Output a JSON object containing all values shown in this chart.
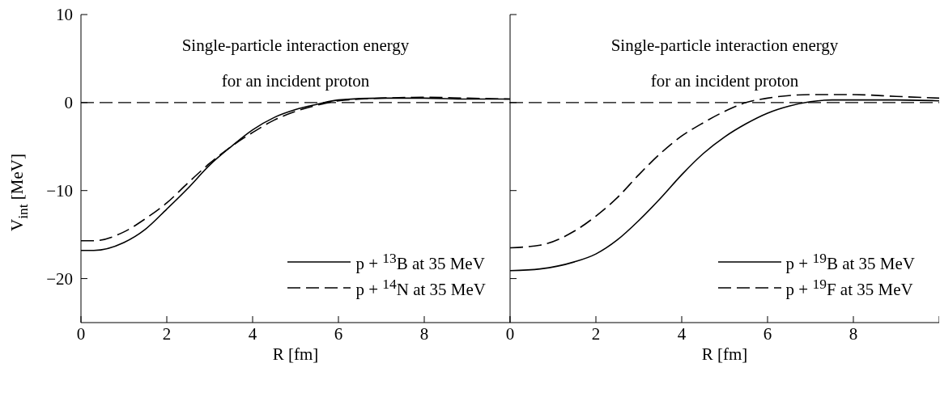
{
  "chart_data": [
    {
      "type": "line",
      "title": "Single-particle interaction energy\nfor an incident proton",
      "xlabel": "R [fm]",
      "ylabel": "V$_{int}$ [MeV]",
      "xlim": [
        0,
        10
      ],
      "xticks": [
        0,
        2,
        4,
        6,
        8,
        {
          "value": 10,
          "label": null
        }
      ],
      "ylim": [
        -25,
        10
      ],
      "yticks": [
        -20,
        -10,
        0,
        10
      ],
      "legend": "bottom right",
      "marker": "none",
      "grid": false,
      "ref_lines": [
        {
          "axis": "y",
          "value": 0,
          "color": "#000000",
          "line_style": "dashed"
        }
      ],
      "series": [
        {
          "name": "p + $^{13}$B at 35 MeV",
          "color": "#000000",
          "line_style": "solid",
          "x": [
            0,
            0.3,
            1,
            1.5,
            2,
            2.5,
            3,
            3.5,
            4,
            4.5,
            5,
            5.5,
            6,
            7,
            8,
            9,
            10
          ],
          "values": [
            -16.8,
            -16.8,
            -15.9,
            -14.4,
            -12.1,
            -9.7,
            -7.1,
            -5.0,
            -3.1,
            -1.7,
            -0.8,
            -0.2,
            0.3,
            0.5,
            0.5,
            0.4,
            0.4
          ]
        },
        {
          "name": "p + $^{14}$N at 35 MeV",
          "color": "#000000",
          "line_style": "dashed",
          "x": [
            0,
            0.3,
            1,
            1.5,
            2,
            2.5,
            3,
            3.5,
            4,
            4.5,
            5,
            5.5,
            6,
            7,
            8,
            9,
            10
          ],
          "values": [
            -15.7,
            -15.7,
            -14.7,
            -13.2,
            -11.4,
            -9.1,
            -6.9,
            -5.0,
            -3.4,
            -2.0,
            -1.0,
            -0.3,
            0.2,
            0.5,
            0.6,
            0.5,
            0.4
          ]
        }
      ]
    },
    {
      "type": "line",
      "title": "Single-particle interaction energy\nfor an incident proton",
      "xlabel": "R [fm]",
      "xlim": [
        0,
        10
      ],
      "xticks": [
        0,
        2,
        4,
        6,
        8,
        {
          "value": 10,
          "label": null
        }
      ],
      "ylim": [
        -25,
        10
      ],
      "yticks": [
        -20,
        -10,
        0,
        10
      ],
      "tick_labels": "x",
      "legend": "bottom right",
      "marker": "none",
      "grid": false,
      "ref_lines": [
        {
          "axis": "y",
          "value": 0,
          "color": "#000000",
          "line_style": "dashed"
        }
      ],
      "series": [
        {
          "name": "p + $^{19}$B at 35 MeV",
          "color": "#000000",
          "line_style": "solid",
          "x": [
            0,
            0.7,
            1.5,
            2,
            2.5,
            3,
            3.5,
            4,
            4.5,
            5,
            5.5,
            6,
            6.5,
            7,
            7.5,
            8,
            9,
            10
          ],
          "values": [
            -19.1,
            -18.9,
            -18.1,
            -17.2,
            -15.6,
            -13.4,
            -10.9,
            -8.2,
            -5.8,
            -3.9,
            -2.4,
            -1.2,
            -0.4,
            0.1,
            0.3,
            0.3,
            0.3,
            0.2
          ]
        },
        {
          "name": "p + $^{19}$F at 35 MeV",
          "color": "#000000",
          "line_style": "dashed",
          "x": [
            0,
            0.7,
            1.5,
            2,
            2.5,
            3,
            3.5,
            4,
            4.5,
            5,
            5.5,
            6,
            7,
            8,
            9,
            10
          ],
          "values": [
            -16.5,
            -16.2,
            -14.6,
            -12.9,
            -10.8,
            -8.2,
            -5.8,
            -3.8,
            -2.3,
            -1.0,
            0.0,
            0.5,
            0.9,
            0.9,
            0.7,
            0.5
          ]
        }
      ]
    }
  ]
}
